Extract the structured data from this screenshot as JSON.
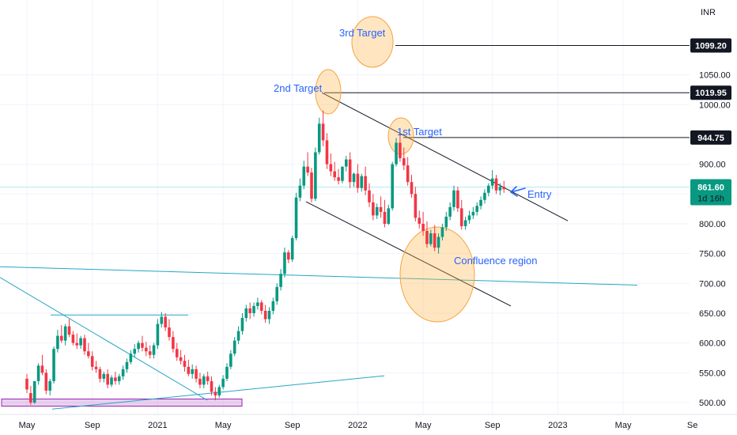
{
  "chart_data": {
    "type": "candlestick",
    "currency": "INR",
    "ylim": [
      488,
      1160
    ],
    "y_ticks": [
      {
        "label": "500.00",
        "value": 500
      },
      {
        "label": "550.00",
        "value": 550
      },
      {
        "label": "600.00",
        "value": 600
      },
      {
        "label": "650.00",
        "value": 650
      },
      {
        "label": "700.00",
        "value": 700
      },
      {
        "label": "750.00",
        "value": 750
      },
      {
        "label": "800.00",
        "value": 800
      },
      {
        "label": "850.00",
        "value": 850
      },
      {
        "label": "900.00",
        "value": 900
      },
      {
        "label": "1000.00",
        "value": 1000
      },
      {
        "label": "1050.00",
        "value": 1050
      }
    ],
    "x_ticks": [
      {
        "label": "May",
        "index": 0
      },
      {
        "label": "Sep",
        "index": 17
      },
      {
        "label": "2021",
        "index": 34
      },
      {
        "label": "May",
        "index": 51
      },
      {
        "label": "Sep",
        "index": 69
      },
      {
        "label": "2022",
        "index": 86
      },
      {
        "label": "May",
        "index": 103
      },
      {
        "label": "Sep",
        "index": 121
      },
      {
        "label": "2023",
        "index": 138
      },
      {
        "label": "May",
        "index": 155
      },
      {
        "label": "Se",
        "index": 173
      }
    ],
    "up_color": "#089981",
    "down_color": "#f23645",
    "candles": [
      [
        540,
        548,
        522,
        516
      ],
      [
        516,
        528,
        500,
        496
      ],
      [
        500,
        536,
        536,
        498
      ],
      [
        536,
        566,
        562,
        530
      ],
      [
        562,
        580,
        550,
        546
      ],
      [
        550,
        556,
        520,
        514
      ],
      [
        520,
        540,
        536,
        512
      ],
      [
        536,
        594,
        590,
        532
      ],
      [
        590,
        622,
        612,
        584
      ],
      [
        612,
        630,
        604,
        600
      ],
      [
        604,
        632,
        628,
        596
      ],
      [
        628,
        640,
        614,
        610
      ],
      [
        614,
        620,
        600,
        596
      ],
      [
        600,
        616,
        596,
        590
      ],
      [
        596,
        612,
        608,
        590
      ],
      [
        608,
        614,
        586,
        580
      ],
      [
        586,
        600,
        578,
        574
      ],
      [
        578,
        586,
        560,
        554
      ],
      [
        560,
        570,
        556,
        550
      ],
      [
        556,
        560,
        540,
        534
      ],
      [
        540,
        552,
        548,
        534
      ],
      [
        548,
        556,
        530,
        524
      ],
      [
        530,
        546,
        542,
        526
      ],
      [
        542,
        552,
        536,
        530
      ],
      [
        536,
        548,
        544,
        530
      ],
      [
        544,
        562,
        556,
        538
      ],
      [
        556,
        574,
        568,
        550
      ],
      [
        568,
        588,
        582,
        564
      ],
      [
        582,
        598,
        590,
        576
      ],
      [
        590,
        604,
        600,
        584
      ],
      [
        600,
        612,
        592,
        586
      ],
      [
        592,
        602,
        586,
        578
      ],
      [
        586,
        596,
        580,
        574
      ],
      [
        580,
        600,
        596,
        574
      ],
      [
        596,
        640,
        632,
        590
      ],
      [
        632,
        652,
        644,
        626
      ],
      [
        644,
        650,
        626,
        620
      ],
      [
        626,
        640,
        610,
        604
      ],
      [
        610,
        620,
        590,
        584
      ],
      [
        590,
        600,
        576,
        570
      ],
      [
        576,
        588,
        570,
        564
      ],
      [
        570,
        580,
        560,
        552
      ],
      [
        560,
        572,
        548,
        544
      ],
      [
        548,
        564,
        556,
        540
      ],
      [
        556,
        562,
        540,
        534
      ],
      [
        540,
        550,
        530,
        524
      ],
      [
        530,
        548,
        544,
        524
      ],
      [
        544,
        552,
        536,
        530
      ],
      [
        536,
        544,
        518,
        512
      ],
      [
        518,
        526,
        512,
        504
      ],
      [
        512,
        530,
        526,
        508
      ],
      [
        526,
        546,
        540,
        522
      ],
      [
        540,
        566,
        560,
        536
      ],
      [
        560,
        588,
        582,
        556
      ],
      [
        582,
        610,
        604,
        578
      ],
      [
        604,
        628,
        620,
        598
      ],
      [
        620,
        650,
        642,
        614
      ],
      [
        642,
        664,
        658,
        636
      ],
      [
        658,
        668,
        650,
        640
      ],
      [
        650,
        668,
        662,
        644
      ],
      [
        662,
        676,
        668,
        656
      ],
      [
        668,
        672,
        654,
        648
      ],
      [
        654,
        664,
        640,
        634
      ],
      [
        640,
        660,
        654,
        632
      ],
      [
        654,
        676,
        670,
        648
      ],
      [
        670,
        700,
        694,
        664
      ],
      [
        694,
        724,
        716,
        688
      ],
      [
        716,
        760,
        752,
        710
      ],
      [
        752,
        756,
        740,
        734
      ],
      [
        740,
        780,
        776,
        736
      ],
      [
        776,
        852,
        844,
        772
      ],
      [
        844,
        876,
        864,
        838
      ],
      [
        864,
        906,
        896,
        858
      ],
      [
        896,
        920,
        886,
        880
      ],
      [
        886,
        894,
        842,
        836
      ],
      [
        842,
        928,
        920,
        838
      ],
      [
        920,
        978,
        968,
        916
      ],
      [
        968,
        990,
        940,
        930
      ],
      [
        940,
        952,
        900,
        892
      ],
      [
        900,
        918,
        888,
        880
      ],
      [
        888,
        904,
        878,
        872
      ],
      [
        878,
        892,
        872,
        866
      ],
      [
        872,
        888,
        896,
        868
      ],
      [
        896,
        914,
        908,
        888
      ],
      [
        908,
        920,
        870,
        860
      ],
      [
        870,
        886,
        884,
        862
      ],
      [
        884,
        900,
        860,
        852
      ],
      [
        860,
        884,
        880,
        854
      ],
      [
        880,
        896,
        856,
        848
      ],
      [
        856,
        868,
        836,
        828
      ],
      [
        836,
        850,
        814,
        806
      ],
      [
        814,
        834,
        828,
        808
      ],
      [
        828,
        846,
        820,
        810
      ],
      [
        820,
        840,
        800,
        794
      ],
      [
        800,
        832,
        826,
        798
      ],
      [
        826,
        904,
        900,
        822
      ],
      [
        900,
        944,
        936,
        896
      ],
      [
        936,
        950,
        910,
        904
      ],
      [
        910,
        928,
        898,
        890
      ],
      [
        898,
        912,
        870,
        864
      ],
      [
        870,
        882,
        850,
        844
      ],
      [
        850,
        862,
        810,
        804
      ],
      [
        810,
        822,
        800,
        792
      ],
      [
        800,
        820,
        788,
        780
      ],
      [
        788,
        804,
        766,
        760
      ],
      [
        766,
        790,
        784,
        762
      ],
      [
        784,
        798,
        760,
        754
      ],
      [
        760,
        784,
        778,
        750
      ],
      [
        778,
        800,
        794,
        772
      ],
      [
        794,
        820,
        812,
        788
      ],
      [
        812,
        836,
        828,
        806
      ],
      [
        828,
        864,
        856,
        822
      ],
      [
        856,
        862,
        826,
        820
      ],
      [
        826,
        840,
        796,
        790
      ],
      [
        796,
        812,
        806,
        790
      ],
      [
        806,
        822,
        814,
        800
      ],
      [
        814,
        828,
        820,
        808
      ],
      [
        820,
        836,
        830,
        814
      ],
      [
        830,
        846,
        840,
        824
      ],
      [
        840,
        858,
        852,
        834
      ],
      [
        852,
        868,
        864,
        846
      ],
      [
        864,
        890,
        876,
        858
      ],
      [
        876,
        882,
        856,
        850
      ],
      [
        856,
        868,
        862,
        848
      ],
      [
        862,
        872,
        858,
        852
      ]
    ],
    "price_labels": [
      {
        "label": "1099.20",
        "value": 1099.2
      },
      {
        "label": "1019.95",
        "value": 1019.95
      },
      {
        "label": "944.75",
        "value": 944.75
      }
    ],
    "current_price": {
      "value": "861.60",
      "countdown": "1d 16h",
      "price": 861.6
    },
    "annotations": [
      "3rd Target",
      "2nd Target",
      "1st Target",
      "Entry",
      "Confluence region"
    ]
  }
}
